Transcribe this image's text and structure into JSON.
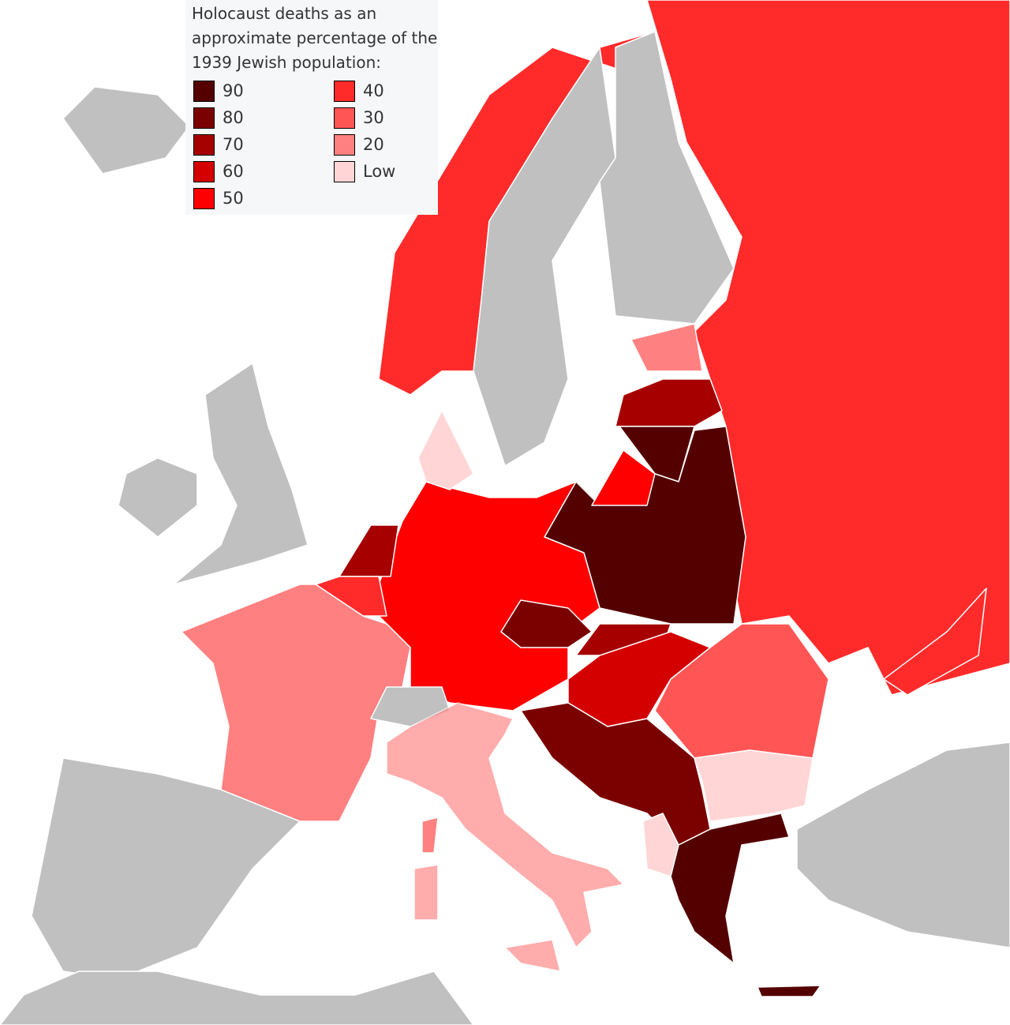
{
  "legend": {
    "title": "Holocaust deaths as an approximate percentage of the 1939 Jewish population:",
    "items": [
      {
        "label": "90",
        "color": "#550000"
      },
      {
        "label": "80",
        "color": "#7b0000"
      },
      {
        "label": "70",
        "color": "#a60000"
      },
      {
        "label": "60",
        "color": "#d40000"
      },
      {
        "label": "50",
        "color": "#ff0000"
      },
      {
        "label": "40",
        "color": "#ff2b2b"
      },
      {
        "label": "30",
        "color": "#ff5555"
      },
      {
        "label": "20",
        "color": "#ff8080"
      },
      {
        "label": "Low",
        "color": "#ffd5d5"
      }
    ]
  }
}
